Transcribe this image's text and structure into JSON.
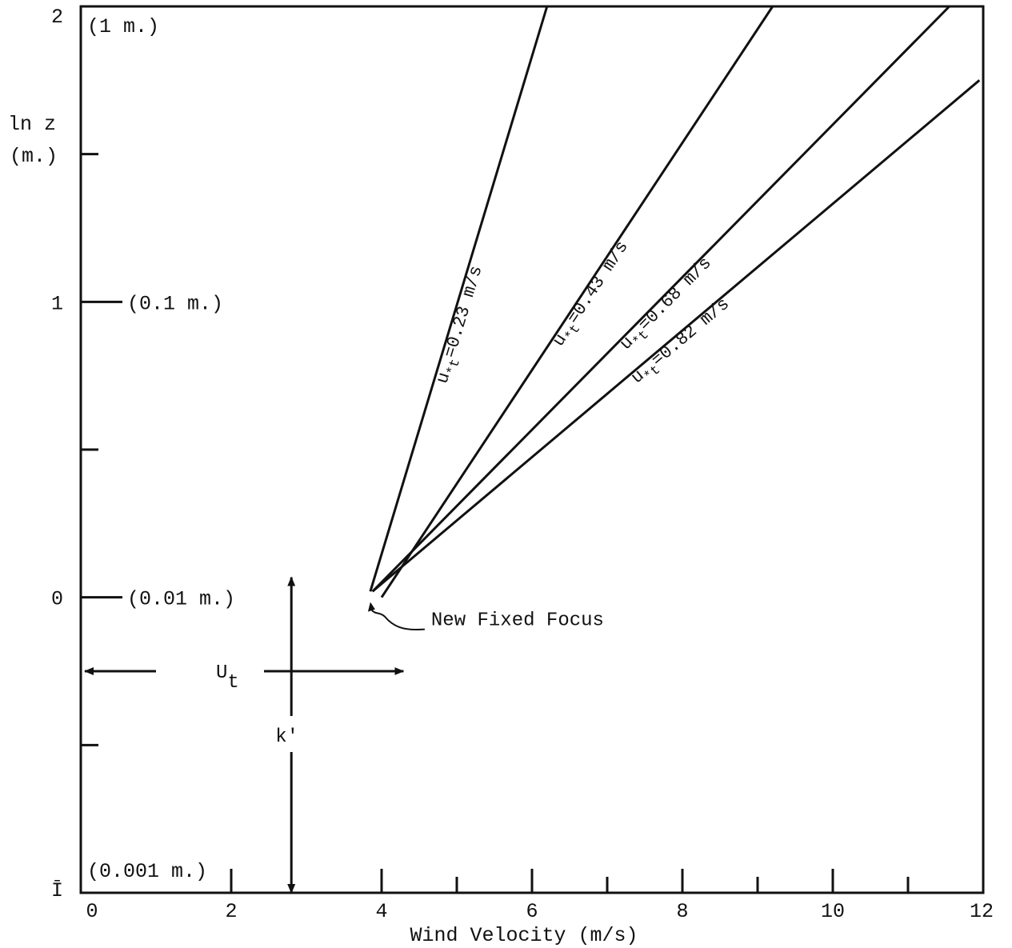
{
  "chart_data": {
    "type": "line",
    "xlabel": "Wind Velocity (m/s)",
    "ylabel": [
      "ln z",
      "(m.)"
    ],
    "xlim": [
      0,
      12
    ],
    "ylim": [
      -1,
      2
    ],
    "x_ticks": [
      {
        "value": 0,
        "label": "0"
      },
      {
        "value": 2,
        "label": "2"
      },
      {
        "value": 4,
        "label": "4"
      },
      {
        "value": 6,
        "label": "6"
      },
      {
        "value": 8,
        "label": "8"
      },
      {
        "value": 10,
        "label": "10"
      },
      {
        "value": 12,
        "label": "12"
      }
    ],
    "y_ticks": [
      {
        "value": -1,
        "label": "Ī",
        "height_label": "(0.001 m.)"
      },
      {
        "value": 0,
        "label": "0",
        "height_label": "(0.01 m.)"
      },
      {
        "value": 1,
        "label": "1",
        "height_label": "(0.1 m.)"
      },
      {
        "value": 2,
        "label": "2",
        "height_label": "(1 m.)"
      }
    ],
    "y_minor_ticks": [
      -0.5,
      0.5,
      1.5
    ],
    "x_minor_ticks": [
      2,
      4,
      5,
      6,
      7,
      8,
      9,
      10,
      11
    ],
    "series": [
      {
        "name": "u*t=0.23 m/s",
        "label_main": "u",
        "label_sub": "*t",
        "label_rest": "=0.23 m/s",
        "x": [
          3.85,
          6.2
        ],
        "y": [
          0.02,
          2.0
        ]
      },
      {
        "name": "u*t=0.43 m/s",
        "label_main": "u",
        "label_sub": "*t",
        "label_rest": "=0.43 m/s",
        "x": [
          4.0,
          9.2
        ],
        "y": [
          0.0,
          2.0
        ]
      },
      {
        "name": "u*t=0.68 m/s",
        "label_main": "u",
        "label_sub": "*t",
        "label_rest": "=0.68 m/s",
        "x": [
          3.88,
          11.55
        ],
        "y": [
          0.02,
          2.0
        ]
      },
      {
        "name": "u*t=0.82 m/s",
        "label_main": "u",
        "label_sub": "*t",
        "label_rest": "=0.82 m/s",
        "x": [
          3.88,
          11.95
        ],
        "y": [
          0.02,
          1.75
        ]
      }
    ],
    "focus_point": {
      "x": 3.85,
      "y": 0.0
    },
    "annotations": {
      "focus_label": "New Fixed Focus",
      "ut_label_main": "U",
      "ut_label_sub": "t",
      "ut_range": [
        0,
        3.95
      ],
      "ut_y": -0.25,
      "k_label": "k'",
      "k_x": 2.8,
      "k_range": [
        -1,
        0
      ]
    }
  }
}
